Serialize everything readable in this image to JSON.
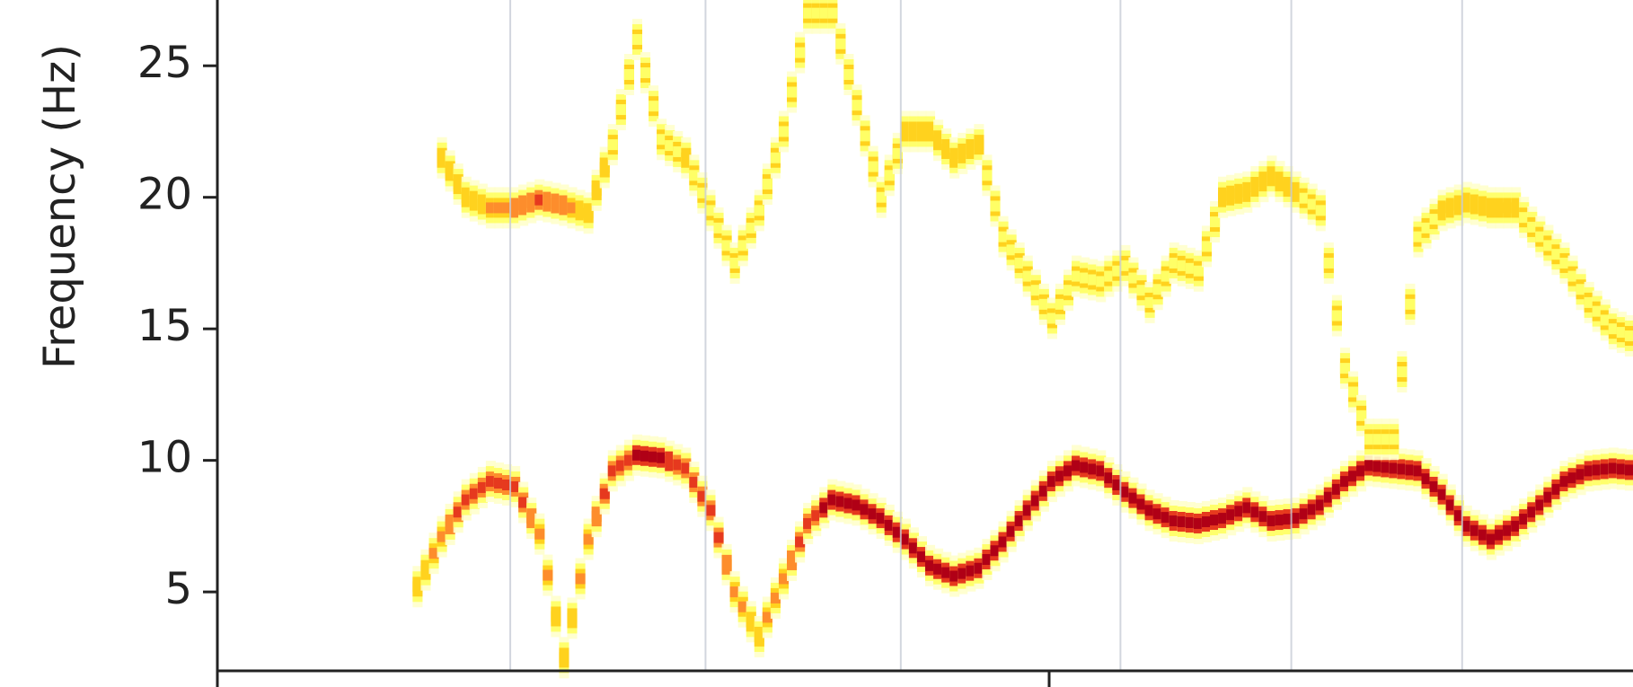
{
  "chart_data": {
    "type": "heatmap",
    "ylabel": "Frequency (Hz)",
    "ylim": [
      2,
      27.5
    ],
    "y_ticks": [
      "25",
      "20",
      "15",
      "10",
      "5"
    ],
    "y_tick_values": [
      25,
      20,
      15,
      10,
      5
    ],
    "grid": "vertical",
    "colormap": [
      "#ffffcc",
      "#ffff66",
      "#ffd21e",
      "#fd8d2c",
      "#e6391e",
      "#b00016"
    ],
    "series": [
      {
        "x": [
          0,
          2,
          4,
          6,
          8,
          10,
          12,
          14,
          16,
          18,
          20,
          22,
          24,
          26,
          28,
          30,
          32,
          34,
          36,
          38,
          40,
          42,
          44,
          46,
          48,
          50,
          52,
          54,
          56,
          58,
          60,
          62,
          64,
          66,
          68,
          70,
          72,
          74,
          76,
          78,
          80,
          82,
          84,
          86,
          88,
          90,
          92,
          94,
          96,
          98,
          100
        ],
        "y": [
          5.2,
          7.1,
          8.5,
          9.2,
          9.0,
          7.2,
          2.5,
          7.0,
          9.6,
          10.2,
          10.1,
          9.7,
          8.1,
          5.0,
          3.3,
          5.5,
          7.6,
          8.5,
          8.3,
          7.8,
          7.0,
          6.0,
          5.6,
          5.9,
          6.9,
          8.1,
          9.2,
          9.8,
          9.6,
          8.8,
          8.1,
          7.7,
          7.6,
          7.8,
          8.2,
          7.7,
          7.8,
          8.3,
          9.2,
          9.8,
          9.7,
          9.6,
          8.7,
          7.5,
          7.0,
          7.5,
          8.3,
          9.2,
          9.6,
          9.7,
          9.6
        ],
        "intensity": [
          0.35,
          0.6,
          0.75,
          0.85,
          0.85,
          0.6,
          0.35,
          0.6,
          0.8,
          0.9,
          0.9,
          0.85,
          0.85,
          0.55,
          0.45,
          0.6,
          0.8,
          0.95,
          0.95,
          0.95,
          0.95,
          0.95,
          0.9,
          0.9,
          0.9,
          0.95,
          1.0,
          1.0,
          1.0,
          0.95,
          0.95,
          0.9,
          0.9,
          0.9,
          0.9,
          0.9,
          0.9,
          0.9,
          1.0,
          1.0,
          1.0,
          1.0,
          0.95,
          0.95,
          0.9,
          0.9,
          0.95,
          1.0,
          1.0,
          1.0,
          1.0
        ]
      },
      {
        "x": [
          2,
          4,
          6,
          8,
          10,
          12,
          14,
          16,
          18,
          20,
          22,
          24,
          26,
          28,
          30,
          32,
          34,
          36,
          38,
          40,
          42,
          44,
          46,
          48,
          50,
          52,
          54,
          56,
          58,
          60,
          62,
          64,
          66,
          68,
          70,
          72,
          74,
          76,
          78,
          80,
          82,
          84,
          86,
          88,
          90,
          92,
          94,
          96,
          98,
          100
        ],
        "y": [
          21.5,
          20.0,
          19.6,
          19.6,
          19.9,
          19.7,
          19.4,
          22.0,
          26.0,
          22.2,
          21.5,
          19.5,
          17.5,
          19.5,
          22.5,
          27.0,
          27.0,
          23.5,
          20.0,
          22.5,
          22.5,
          21.5,
          22.0,
          18.5,
          17.0,
          15.4,
          17.0,
          16.8,
          17.4,
          16.0,
          17.5,
          17.2,
          20.0,
          20.2,
          20.8,
          20.2,
          19.5,
          13.5,
          10.8,
          10.8,
          18.5,
          19.5,
          19.8,
          19.6,
          19.6,
          18.5,
          17.5,
          16.0,
          15.0,
          14.6
        ],
        "intensity": [
          0.3,
          0.35,
          0.55,
          0.65,
          0.7,
          0.65,
          0.4,
          0.25,
          0.2,
          0.25,
          0.3,
          0.25,
          0.25,
          0.25,
          0.25,
          0.2,
          0.2,
          0.2,
          0.25,
          0.3,
          0.35,
          0.35,
          0.3,
          0.25,
          0.2,
          0.2,
          0.25,
          0.25,
          0.25,
          0.2,
          0.25,
          0.25,
          0.3,
          0.35,
          0.35,
          0.3,
          0.25,
          0.15,
          0.15,
          0.15,
          0.25,
          0.3,
          0.35,
          0.35,
          0.3,
          0.25,
          0.25,
          0.2,
          0.2,
          0.2
        ]
      }
    ],
    "gridlines_x": [
      8,
      24,
      40,
      58,
      72,
      86
    ],
    "xlim": [
      -16,
      100
    ]
  }
}
